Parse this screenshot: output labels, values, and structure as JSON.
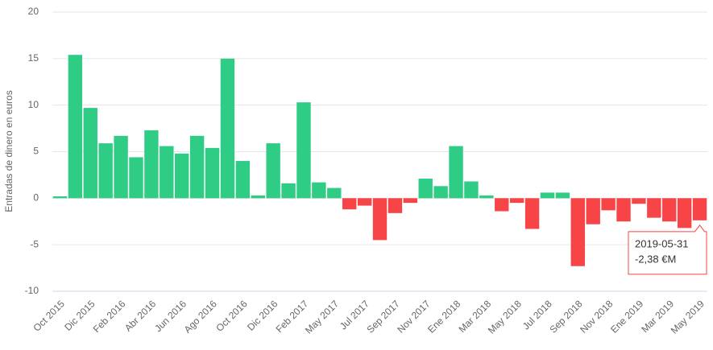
{
  "chart_data": {
    "type": "bar",
    "y_axis_label": "Entradas de dinero en euros",
    "categories": [
      "Oct 2015",
      null,
      "Dic 2015",
      null,
      "Feb 2016",
      null,
      "Abr 2016",
      null,
      "Jun 2016",
      null,
      "Ago 2016",
      null,
      "Oct 2016",
      null,
      "Dic 2016",
      null,
      "Feb 2017",
      null,
      "May 2017",
      null,
      "Jul 2017",
      null,
      "Sep 2017",
      null,
      "Nov 2017",
      null,
      "Ene 2018",
      null,
      "Mar 2018",
      null,
      "May 2018",
      null,
      "Jul 2018",
      null,
      "Sep 2018",
      null,
      "Nov 2018",
      null,
      "Ene 2019",
      null,
      "Mar 2019",
      null,
      "May 2019"
    ],
    "values": [
      0.2,
      15.4,
      9.7,
      5.9,
      6.7,
      4.4,
      7.3,
      5.6,
      4.8,
      6.7,
      5.4,
      15.0,
      4.0,
      0.3,
      5.9,
      1.6,
      10.3,
      1.7,
      1.1,
      -1.2,
      -0.8,
      -4.5,
      -1.6,
      -0.5,
      2.1,
      1.3,
      5.6,
      1.8,
      0.3,
      -1.4,
      -0.5,
      -3.3,
      0.6,
      0.6,
      -7.3,
      -2.8,
      -1.3,
      -2.5,
      -0.6,
      -2.1,
      -2.5,
      -3.2,
      -2.38
    ],
    "positive_color": "#2ecc85",
    "negative_color": "#f74446",
    "ylim": [
      -10,
      20
    ],
    "yticks": [
      -10,
      -5,
      0,
      5,
      10,
      15,
      20
    ],
    "grid": true,
    "tooltip": {
      "date": "2019-05-31",
      "value": "-2,38 €M"
    }
  }
}
